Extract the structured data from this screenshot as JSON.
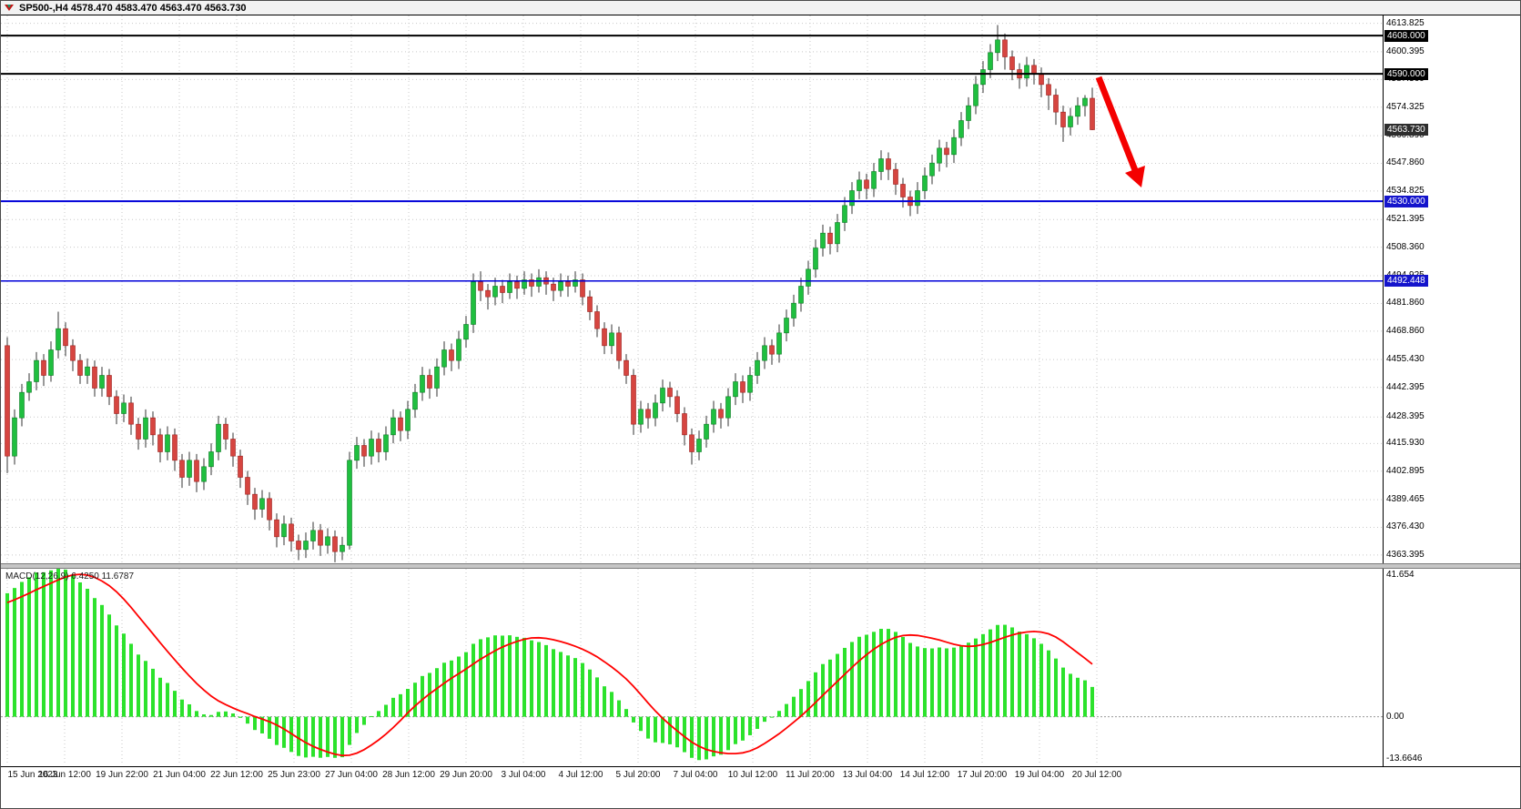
{
  "header": {
    "title": "SP500-,H4 4578.470 4583.470 4563.470 4563.730"
  },
  "macd": {
    "label": "MACD(12,26,9) 6.4250 11.6787",
    "axis_labels": [
      "41.654",
      "0.00",
      "-13.6646"
    ]
  },
  "price_tags": [
    {
      "value": "4608.000",
      "price": 4608.0,
      "bg": "#000000"
    },
    {
      "value": "4590.000",
      "price": 4590.0,
      "bg": "#000000"
    },
    {
      "value": "4563.730",
      "price": 4563.73,
      "bg": "#2e2e2e"
    },
    {
      "value": "4530.000",
      "price": 4530.0,
      "bg": "#1414cc"
    },
    {
      "value": "4492.448",
      "price": 4492.448,
      "bg": "#1414cc"
    }
  ],
  "hlines": [
    {
      "price": 4608.0,
      "color": "#000000",
      "width": 2
    },
    {
      "price": 4590.0,
      "color": "#000000",
      "width": 2
    },
    {
      "price": 4530.0,
      "color": "#0000d9",
      "width": 2
    },
    {
      "price": 4492.448,
      "color": "#0000d9",
      "width": 1.5
    }
  ],
  "timeline": [
    "15 Jun 2023",
    "16 Jun 12:00",
    "19 Jun 22:00",
    "21 Jun 04:00",
    "22 Jun 12:00",
    "25 Jun 23:00",
    "27 Jun 04:00",
    "28 Jun 12:00",
    "29 Jun 20:00",
    "3 Jul 04:00",
    "4 Jul 12:00",
    "5 Jul 20:00",
    "7 Jul 04:00",
    "10 Jul 12:00",
    "11 Jul 20:00",
    "13 Jul 04:00",
    "14 Jul 12:00",
    "17 Jul 20:00",
    "19 Jul 04:00",
    "20 Jul 12:00"
  ],
  "annotation": {
    "type": "arrow-down-right",
    "color": "#f40000"
  },
  "chart_data": {
    "type": "candlestick",
    "symbol": "SP500-",
    "timeframe": "H4",
    "title": "SP500-,H4",
    "ohlc_current": {
      "open": 4578.47,
      "high": 4583.47,
      "low": 4563.47,
      "close": 4563.73
    },
    "ylim": [
      4359.5,
      4617.5
    ],
    "price_ticks": [
      "4613.825",
      "4600.395",
      "4587.360",
      "4574.325",
      "4560.890",
      "4547.860",
      "4534.825",
      "4521.395",
      "4508.360",
      "4494.925",
      "4481.860",
      "4468.860",
      "4455.430",
      "4442.395",
      "4428.395",
      "4415.930",
      "4402.895",
      "4389.465",
      "4376.430",
      "4363.395"
    ],
    "levels": [
      4608.0,
      4590.0,
      4530.0,
      4492.448
    ],
    "candles": [
      [
        4462,
        4466,
        4402,
        4410
      ],
      [
        4410,
        4432,
        4406,
        4428
      ],
      [
        4428,
        4444,
        4424,
        4440
      ],
      [
        4440,
        4449,
        4436,
        4445
      ],
      [
        4445,
        4459,
        4441,
        4455
      ],
      [
        4455,
        4458,
        4443,
        4448
      ],
      [
        4448,
        4464,
        4445,
        4460
      ],
      [
        4460,
        4478,
        4456,
        4470
      ],
      [
        4470,
        4473,
        4457,
        4462
      ],
      [
        4462,
        4465,
        4450,
        4455
      ],
      [
        4455,
        4458,
        4444,
        4448
      ],
      [
        4448,
        4456,
        4444,
        4452
      ],
      [
        4452,
        4455,
        4438,
        4442
      ],
      [
        4442,
        4452,
        4438,
        4448
      ],
      [
        4448,
        4451,
        4434,
        4438
      ],
      [
        4438,
        4441,
        4425,
        4430
      ],
      [
        4430,
        4439,
        4426,
        4435
      ],
      [
        4435,
        4438,
        4420,
        4425
      ],
      [
        4425,
        4428,
        4413,
        4418
      ],
      [
        4418,
        4432,
        4414,
        4428
      ],
      [
        4428,
        4431,
        4415,
        4420
      ],
      [
        4420,
        4423,
        4407,
        4412
      ],
      [
        4412,
        4424,
        4408,
        4420
      ],
      [
        4420,
        4423,
        4403,
        4408
      ],
      [
        4408,
        4411,
        4395,
        4400
      ],
      [
        4400,
        4412,
        4396,
        4408
      ],
      [
        4408,
        4411,
        4393,
        4398
      ],
      [
        4398,
        4409,
        4394,
        4405
      ],
      [
        4405,
        4416,
        4401,
        4412
      ],
      [
        4412,
        4429,
        4408,
        4425
      ],
      [
        4425,
        4428,
        4413,
        4418
      ],
      [
        4418,
        4421,
        4405,
        4410
      ],
      [
        4410,
        4413,
        4395,
        4400
      ],
      [
        4400,
        4403,
        4387,
        4392
      ],
      [
        4392,
        4395,
        4380,
        4385
      ],
      [
        4385,
        4394,
        4381,
        4390
      ],
      [
        4390,
        4393,
        4375,
        4380
      ],
      [
        4380,
        4383,
        4367,
        4372
      ],
      [
        4372,
        4382,
        4368,
        4378
      ],
      [
        4378,
        4381,
        4365,
        4370
      ],
      [
        4370,
        4373,
        4361,
        4366
      ],
      [
        4366,
        4374,
        4362,
        4370
      ],
      [
        4370,
        4379,
        4366,
        4375
      ],
      [
        4375,
        4378,
        4363,
        4368
      ],
      [
        4368,
        4376,
        4364,
        4372
      ],
      [
        4372,
        4375,
        4360,
        4365
      ],
      [
        4365,
        4372,
        4361,
        4368
      ],
      [
        4368,
        4412,
        4366,
        4408
      ],
      [
        4408,
        4419,
        4404,
        4415
      ],
      [
        4415,
        4418,
        4405,
        4410
      ],
      [
        4410,
        4422,
        4406,
        4418
      ],
      [
        4418,
        4421,
        4407,
        4412
      ],
      [
        4412,
        4424,
        4408,
        4420
      ],
      [
        4420,
        4432,
        4416,
        4428
      ],
      [
        4428,
        4431,
        4417,
        4422
      ],
      [
        4422,
        4436,
        4418,
        4432
      ],
      [
        4432,
        4444,
        4428,
        4440
      ],
      [
        4440,
        4452,
        4436,
        4448
      ],
      [
        4448,
        4451,
        4437,
        4442
      ],
      [
        4442,
        4456,
        4438,
        4452
      ],
      [
        4452,
        4464,
        4448,
        4460
      ],
      [
        4460,
        4463,
        4450,
        4455
      ],
      [
        4455,
        4469,
        4451,
        4465
      ],
      [
        4465,
        4476,
        4461,
        4472
      ],
      [
        4472,
        4496,
        4468,
        4492
      ],
      [
        4492,
        4497,
        4483,
        4488
      ],
      [
        4488,
        4491,
        4479,
        4485
      ],
      [
        4485,
        4494,
        4481,
        4490
      ],
      [
        4490,
        4493,
        4482,
        4487
      ],
      [
        4487,
        4496,
        4484,
        4492
      ],
      [
        4492,
        4495,
        4484,
        4489
      ],
      [
        4489,
        4497,
        4486,
        4493
      ],
      [
        4493,
        4496,
        4485,
        4490
      ],
      [
        4490,
        4498,
        4487,
        4494
      ],
      [
        4494,
        4497,
        4486,
        4491
      ],
      [
        4491,
        4494,
        4483,
        4488
      ],
      [
        4488,
        4496,
        4485,
        4492
      ],
      [
        4492,
        4495,
        4485,
        4490
      ],
      [
        4490,
        4497,
        4487,
        4493
      ],
      [
        4493,
        4496,
        4481,
        4485
      ],
      [
        4485,
        4488,
        4474,
        4478
      ],
      [
        4478,
        4481,
        4466,
        4470
      ],
      [
        4470,
        4473,
        4458,
        4462
      ],
      [
        4462,
        4472,
        4458,
        4468
      ],
      [
        4468,
        4471,
        4451,
        4455
      ],
      [
        4455,
        4458,
        4444,
        4448
      ],
      [
        4448,
        4451,
        4420,
        4425
      ],
      [
        4425,
        4436,
        4421,
        4432
      ],
      [
        4432,
        4435,
        4423,
        4428
      ],
      [
        4428,
        4439,
        4424,
        4435
      ],
      [
        4435,
        4446,
        4431,
        4442
      ],
      [
        4442,
        4445,
        4433,
        4438
      ],
      [
        4438,
        4441,
        4426,
        4430
      ],
      [
        4430,
        4433,
        4415,
        4420
      ],
      [
        4420,
        4423,
        4406,
        4412
      ],
      [
        4412,
        4422,
        4408,
        4418
      ],
      [
        4418,
        4429,
        4414,
        4425
      ],
      [
        4425,
        4436,
        4421,
        4432
      ],
      [
        4432,
        4435,
        4423,
        4428
      ],
      [
        4428,
        4442,
        4424,
        4438
      ],
      [
        4438,
        4449,
        4434,
        4445
      ],
      [
        4445,
        4448,
        4435,
        4440
      ],
      [
        4440,
        4452,
        4436,
        4448
      ],
      [
        4448,
        4459,
        4444,
        4455
      ],
      [
        4455,
        4466,
        4451,
        4462
      ],
      [
        4462,
        4465,
        4453,
        4458
      ],
      [
        4458,
        4472,
        4454,
        4468
      ],
      [
        4468,
        4479,
        4464,
        4475
      ],
      [
        4475,
        4486,
        4471,
        4482
      ],
      [
        4482,
        4494,
        4478,
        4490
      ],
      [
        4490,
        4502,
        4486,
        4498
      ],
      [
        4498,
        4512,
        4494,
        4508
      ],
      [
        4508,
        4519,
        4504,
        4515
      ],
      [
        4515,
        4518,
        4505,
        4510
      ],
      [
        4510,
        4524,
        4506,
        4520
      ],
      [
        4520,
        4532,
        4516,
        4528
      ],
      [
        4528,
        4539,
        4524,
        4535
      ],
      [
        4535,
        4544,
        4531,
        4540
      ],
      [
        4540,
        4543,
        4531,
        4536
      ],
      [
        4536,
        4548,
        4532,
        4544
      ],
      [
        4544,
        4554,
        4540,
        4550
      ],
      [
        4550,
        4553,
        4540,
        4545
      ],
      [
        4545,
        4548,
        4533,
        4538
      ],
      [
        4538,
        4541,
        4527,
        4532
      ],
      [
        4532,
        4535,
        4523,
        4528
      ],
      [
        4528,
        4539,
        4524,
        4535
      ],
      [
        4535,
        4546,
        4531,
        4542
      ],
      [
        4542,
        4552,
        4538,
        4548
      ],
      [
        4548,
        4559,
        4544,
        4555
      ],
      [
        4555,
        4558,
        4546,
        4552
      ],
      [
        4552,
        4564,
        4548,
        4560
      ],
      [
        4560,
        4572,
        4556,
        4568
      ],
      [
        4568,
        4579,
        4564,
        4575
      ],
      [
        4575,
        4589,
        4571,
        4585
      ],
      [
        4585,
        4596,
        4581,
        4592
      ],
      [
        4592,
        4604,
        4588,
        4600
      ],
      [
        4600,
        4613,
        4596,
        4606
      ],
      [
        4606,
        4609,
        4592,
        4598
      ],
      [
        4598,
        4601,
        4587,
        4592
      ],
      [
        4592,
        4595,
        4583,
        4588
      ],
      [
        4588,
        4598,
        4584,
        4594
      ],
      [
        4594,
        4597,
        4585,
        4590
      ],
      [
        4590,
        4593,
        4579,
        4585
      ],
      [
        4585,
        4588,
        4573,
        4580
      ],
      [
        4580,
        4583,
        4566,
        4572
      ],
      [
        4572,
        4575,
        4558,
        4565
      ],
      [
        4565,
        4574,
        4561,
        4570
      ],
      [
        4570,
        4579,
        4566,
        4575
      ],
      [
        4575,
        4580,
        4570,
        4578.5
      ],
      [
        4578.5,
        4583.5,
        4563.5,
        4563.7
      ]
    ],
    "macd": {
      "fast": 12,
      "slow": 26,
      "signal": 9,
      "current_macd": 6.425,
      "current_signal": 11.6787,
      "ylim": [
        -13.6646,
        41.654
      ],
      "prehistory_bars": 30,
      "prehistory_slope": 6
    },
    "colors": {
      "bull": "#1fbf3f",
      "bull_border": "#0b7a23",
      "bear": "#d64540",
      "bear_border": "#9c1f1c",
      "wick": "#333333",
      "macd_hist": "#2ce22c",
      "macd_signal": "#ff0000",
      "grid": "#c9c9c9",
      "level_blue": "#0000d9",
      "level_black": "#000000"
    }
  }
}
